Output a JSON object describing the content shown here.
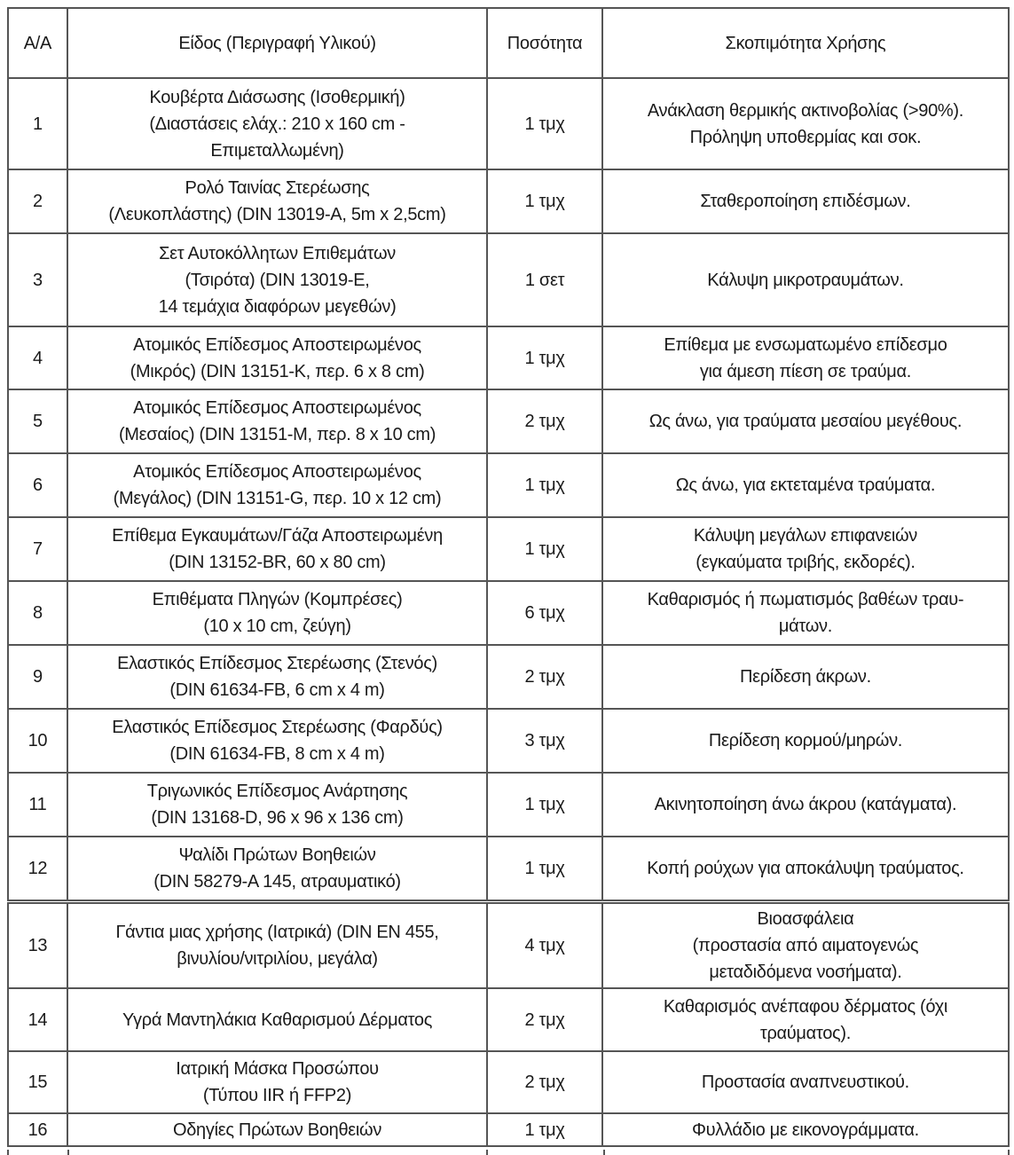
{
  "table": {
    "headers": [
      "Α/Α",
      "Είδος (Περιγραφή Υλικού)",
      "Ποσότητα",
      "Σκοπιμότητα Χρήσης"
    ],
    "rows": [
      {
        "no": "1",
        "item": "Κουβέρτα Διάσωσης (Ισοθερμική)\n(Διαστάσεις ελάχ.: 210 x 160 cm -\nΕπιμεταλλωμένη)",
        "qty": "1 τμχ",
        "purpose": "Ανάκλαση θερμικής ακτινοβολίας (>90%).\nΠρόληψη υποθερμίας και σοκ."
      },
      {
        "no": "2",
        "item": "Ρολό Ταινίας Στερέωσης\n(Λευκοπλάστης) (DIN 13019-A, 5m x 2,5cm)",
        "qty": "1 τμχ",
        "purpose": "Σταθεροποίηση επιδέσμων."
      },
      {
        "no": "3",
        "item": "Σετ Αυτοκόλλητων Επιθεμάτων\n(Τσιρότα) (DIN 13019-E,\n14 τεμάχια διαφόρων μεγεθών)",
        "qty": "1 σετ",
        "purpose": "Κάλυψη μικροτραυμάτων."
      },
      {
        "no": "4",
        "item": "Ατομικός Επίδεσμος Αποστειρωμένος\n(Μικρός) (DIN 13151-K, περ. 6 x 8 cm)",
        "qty": "1 τμχ",
        "purpose": "Επίθεμα με ενσωματωμένο επίδεσμο\nγια άμεση πίεση σε τραύμα."
      },
      {
        "no": "5",
        "item": "Ατομικός Επίδεσμος Αποστειρωμένος\n(Μεσαίος) (DIN 13151-M, περ. 8 x 10 cm)",
        "qty": "2 τμχ",
        "purpose": "Ως άνω, για τραύματα μεσαίου μεγέθους."
      },
      {
        "no": "6",
        "item": "Ατομικός Επίδεσμος Αποστειρωμένος\n(Μεγάλος) (DIN 13151-G, περ. 10 x 12 cm)",
        "qty": "1 τμχ",
        "purpose": "Ως άνω, για εκτεταμένα τραύματα."
      },
      {
        "no": "7",
        "item": "Επίθεμα Εγκαυμάτων/Γάζα Αποστειρωμένη\n(DIN 13152-BR, 60 x 80 cm)",
        "qty": "1 τμχ",
        "purpose": "Κάλυψη μεγάλων επιφανειών\n(εγκαύματα τριβής, εκδορές)."
      },
      {
        "no": "8",
        "item": "Επιθέματα Πληγών (Κομπρέσες)\n(10 x 10 cm, ζεύγη)",
        "qty": "6 τμχ",
        "purpose": "Καθαρισμός ή πωματισμός βαθέων τραυ-\nμάτων."
      },
      {
        "no": "9",
        "item": "Ελαστικός Επίδεσμος Στερέωσης (Στενός)\n(DIN 61634-FB, 6 cm x 4 m)",
        "qty": "2 τμχ",
        "purpose": "Περίδεση άκρων."
      },
      {
        "no": "10",
        "item": "Ελαστικός Επίδεσμος Στερέωσης (Φαρδύς)\n(DIN 61634-FB, 8 cm x 4 m)",
        "qty": "3 τμχ",
        "purpose": "Περίδεση κορμού/μηρών."
      },
      {
        "no": "11",
        "item": "Τριγωνικός Επίδεσμος Ανάρτησης\n(DIN 13168-D, 96 x 96 x 136 cm)",
        "qty": "1 τμχ",
        "purpose": "Ακινητοποίηση άνω άκρου (κατάγματα)."
      },
      {
        "no": "12",
        "item": "Ψαλίδι Πρώτων Βοηθειών\n(DIN 58279-A 145, ατραυματικό)",
        "qty": "1 τμχ",
        "purpose": "Κοπή ρούχων για αποκάλυψη τραύματος."
      },
      {
        "no": "13",
        "item": "Γάντια μιας χρήσης (Ιατρικά) (DIN EN 455,\nβινυλίου/νιτριλίου, μεγάλα)",
        "qty": "4 τμχ",
        "purpose": "Βιοασφάλεια\n(προστασία από αιματογενώς\nμεταδιδόμενα νοσήματα)."
      },
      {
        "no": "14",
        "item": "Υγρά Μαντηλάκια Καθαρισμού Δέρματος",
        "qty": "2 τμχ",
        "purpose": "Καθαρισμός ανέπαφου δέρματος (όχι\nτραύματος)."
      },
      {
        "no": "15",
        "item": "Ιατρική Μάσκα Προσώπου\n(Τύπου IIR ή FFP2)",
        "qty": "2 τμχ",
        "purpose": "Προστασία αναπνευστικού."
      },
      {
        "no": "16",
        "item": "Οδηγίες Πρώτων Βοηθειών",
        "qty": "1 τμχ",
        "purpose": "Φυλλάδιο με εικονογράμματα."
      }
    ]
  }
}
